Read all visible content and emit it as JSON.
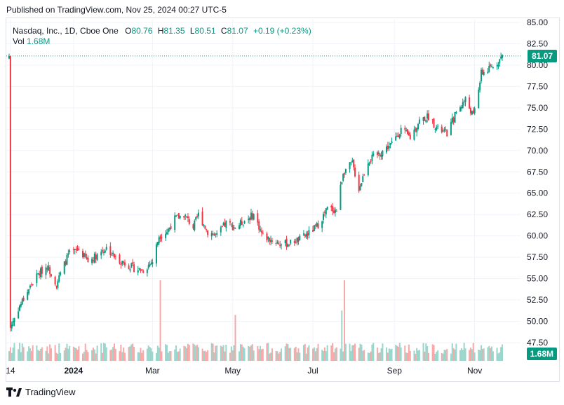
{
  "header": {
    "published": "Published on TradingView.com, Nov 25, 2024 00:27 UTC-5"
  },
  "legend": {
    "symbol": "Nasdaq, Inc., 1D, Cboe One",
    "o_label": "O",
    "o_value": "80.76",
    "h_label": "H",
    "h_value": "81.35",
    "l_label": "L",
    "l_value": "80.51",
    "c_label": "C",
    "c_value": "81.07",
    "change": "+0.19 (+0.23%)",
    "vol_label": "Vol",
    "vol_value": "1.68M"
  },
  "tags": {
    "last_price": "81.07",
    "last_volume": "1.68M"
  },
  "footer": {
    "brand": "TradingView"
  },
  "colors": {
    "up": "#089981",
    "down": "#f23645",
    "grid": "#f0f3fa",
    "text": "#131722"
  },
  "chart_data": {
    "type": "candlestick",
    "y_ticks": [
      "85.00",
      "82.50",
      "80.00",
      "77.50",
      "75.00",
      "72.50",
      "70.00",
      "67.50",
      "65.00",
      "62.50",
      "60.00",
      "57.50",
      "55.00",
      "52.50",
      "50.00",
      "47.50"
    ],
    "ylim": [
      47.5,
      85.0
    ],
    "x_ticks": [
      "14",
      "2024",
      "Mar",
      "May",
      "Jul",
      "Sep",
      "Nov"
    ],
    "last_price": 81.07,
    "price_anchors": [
      [
        "2023-11-14",
        49.3
      ],
      [
        "2023-11-20",
        51.5
      ],
      [
        "2023-11-28",
        53.8
      ],
      [
        "2023-12-05",
        55.5
      ],
      [
        "2023-12-12",
        56.5
      ],
      [
        "2023-12-19",
        54.4
      ],
      [
        "2023-12-28",
        57.8
      ],
      [
        "2024-01-05",
        58.4
      ],
      [
        "2024-01-12",
        57.0
      ],
      [
        "2024-01-19",
        57.8
      ],
      [
        "2024-01-26",
        58.6
      ],
      [
        "2024-02-02",
        57.4
      ],
      [
        "2024-02-09",
        56.8
      ],
      [
        "2024-02-16",
        56.2
      ],
      [
        "2024-02-23",
        56.0
      ],
      [
        "2024-03-01",
        57.0
      ],
      [
        "2024-03-06",
        60.0
      ],
      [
        "2024-03-12",
        60.5
      ],
      [
        "2024-03-18",
        62.0
      ],
      [
        "2024-03-25",
        62.5
      ],
      [
        "2024-04-01",
        61.0
      ],
      [
        "2024-04-05",
        62.5
      ],
      [
        "2024-04-12",
        60.5
      ],
      [
        "2024-04-19",
        60.0
      ],
      [
        "2024-04-26",
        61.5
      ],
      [
        "2024-05-03",
        61.0
      ],
      [
        "2024-05-10",
        61.8
      ],
      [
        "2024-05-17",
        62.5
      ],
      [
        "2024-05-24",
        60.0
      ],
      [
        "2024-05-31",
        59.5
      ],
      [
        "2024-06-07",
        59.0
      ],
      [
        "2024-06-14",
        59.2
      ],
      [
        "2024-06-21",
        59.6
      ],
      [
        "2024-06-28",
        60.3
      ],
      [
        "2024-07-05",
        61.3
      ],
      [
        "2024-07-12",
        63.2
      ],
      [
        "2024-07-19",
        63.0
      ],
      [
        "2024-07-24",
        67.5
      ],
      [
        "2024-07-31",
        68.5
      ],
      [
        "2024-08-05",
        65.5
      ],
      [
        "2024-08-12",
        68.8
      ],
      [
        "2024-08-20",
        69.6
      ],
      [
        "2024-08-30",
        70.8
      ],
      [
        "2024-09-06",
        72.5
      ],
      [
        "2024-09-13",
        71.5
      ],
      [
        "2024-09-20",
        73.5
      ],
      [
        "2024-09-27",
        74.0
      ],
      [
        "2024-10-04",
        72.5
      ],
      [
        "2024-10-11",
        72.0
      ],
      [
        "2024-10-18",
        74.5
      ],
      [
        "2024-10-25",
        76.0
      ],
      [
        "2024-10-31",
        74.0
      ],
      [
        "2024-11-06",
        79.0
      ],
      [
        "2024-11-12",
        79.5
      ],
      [
        "2024-11-18",
        80.3
      ],
      [
        "2024-11-22",
        81.07
      ]
    ],
    "volume_spikes": [
      [
        "2024-03-07",
        1.0
      ],
      [
        "2024-07-25",
        1.0
      ],
      [
        "2024-05-03",
        0.45
      ],
      [
        "2024-07-23",
        0.52
      ]
    ]
  }
}
